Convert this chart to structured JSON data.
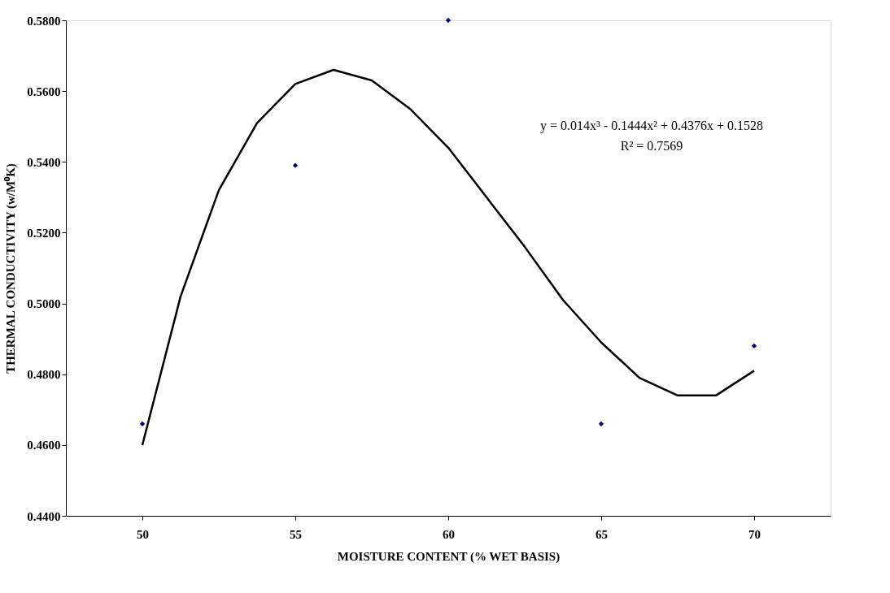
{
  "chart_data": {
    "type": "scatter",
    "xlabel": "MOISTURE CONTENT (% WET BASIS)",
    "ylabel": "THERMAL CONDUCTIVITY (w/M⁰K)",
    "xlim": [
      47.5,
      72.5
    ],
    "xticks": [
      50,
      55,
      60,
      65,
      70
    ],
    "ylim": [
      0.44,
      0.58
    ],
    "yticks": [
      {
        "value": 0.44,
        "label": "0.4400"
      },
      {
        "value": 0.46,
        "label": "0.4600"
      },
      {
        "value": 0.48,
        "label": "0.4800"
      },
      {
        "value": 0.5,
        "label": "0.5000"
      },
      {
        "value": 0.52,
        "label": "0.5200"
      },
      {
        "value": 0.54,
        "label": "0.5400"
      },
      {
        "value": 0.56,
        "label": "0.5600"
      },
      {
        "value": 0.58,
        "label": "0.5800"
      }
    ],
    "grid": false,
    "series": [
      {
        "marker": "diamond",
        "color": "#000080",
        "x": [
          50,
          55,
          60,
          65,
          70
        ],
        "values": [
          0.466,
          0.539,
          0.58,
          0.466,
          0.488
        ]
      },
      {
        "type": "line",
        "marker": "none",
        "line_style": "solid",
        "color": "#000000",
        "x": [
          50,
          51.25,
          52.5,
          53.75,
          55,
          56.25,
          57.5,
          58.75,
          60,
          61.25,
          62.5,
          63.75,
          65,
          66.25,
          67.5,
          68.75,
          70
        ],
        "values": [
          0.46,
          0.502,
          0.532,
          0.551,
          0.562,
          0.566,
          0.563,
          0.555,
          0.544,
          0.53,
          0.516,
          0.501,
          0.489,
          0.479,
          0.474,
          0.474,
          0.481
        ]
      }
    ],
    "annotations": [
      "y = 0.014x³ - 0.1444x² + 0.4376x + 0.1528",
      "R² = 0.7569"
    ]
  }
}
